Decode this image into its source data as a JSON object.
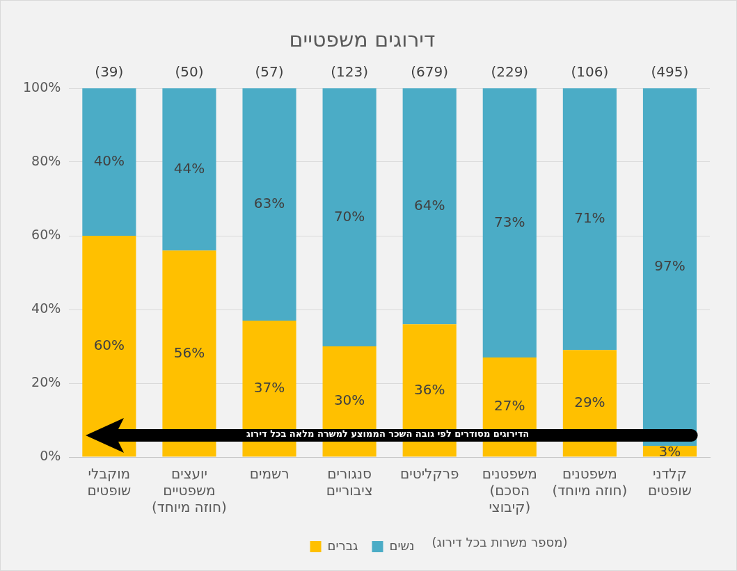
{
  "chart_data": {
    "type": "bar",
    "title": "דירוגים משפטיים",
    "stacked": true,
    "categories": [
      "מוקבלי\nשופטים",
      "יועצים\nמשפטיים\n(חוזה מיוחד)",
      "רשמים",
      "סנגורים\nציבוריים",
      "פרקליטים",
      "משפטנים\n(הסכם\nקיבוצי)",
      "משפטנים\n(חוזה מיוחד)",
      "קלדני\nשופטים"
    ],
    "series": [
      {
        "name": "גברים",
        "color": "#ffc000",
        "values": [
          60,
          56,
          37,
          30,
          36,
          27,
          29,
          3
        ],
        "value_labels": [
          "60%",
          "56%",
          "37%",
          "30%",
          "36%",
          "27%",
          "29%",
          "3%"
        ]
      },
      {
        "name": "נשים",
        "color": "#4bacc6",
        "values": [
          40,
          44,
          63,
          70,
          64,
          73,
          71,
          97
        ],
        "value_labels": [
          "40%",
          "44%",
          "63%",
          "70%",
          "64%",
          "73%",
          "71%",
          "97%"
        ]
      }
    ],
    "ylim": [
      0,
      100
    ],
    "yticks": [
      {
        "value": 0,
        "label": "0%"
      },
      {
        "value": 20,
        "label": "20%"
      },
      {
        "value": 40,
        "label": "40%"
      },
      {
        "value": 60,
        "label": "60%"
      },
      {
        "value": 80,
        "label": "80%"
      },
      {
        "value": 100,
        "label": "100%"
      }
    ],
    "grid": "y",
    "legend": "bottom",
    "annotations": [
      "(מספר משרות בכל דירוג)",
      "הדירוגים מסודרים לפי גובה השכר הממוצע למשרה מלאה בכל דירוג",
      "(39)",
      "(50)",
      "(57)",
      "(123)",
      "(679)",
      "(229)",
      "(106)",
      "(495)"
    ]
  }
}
